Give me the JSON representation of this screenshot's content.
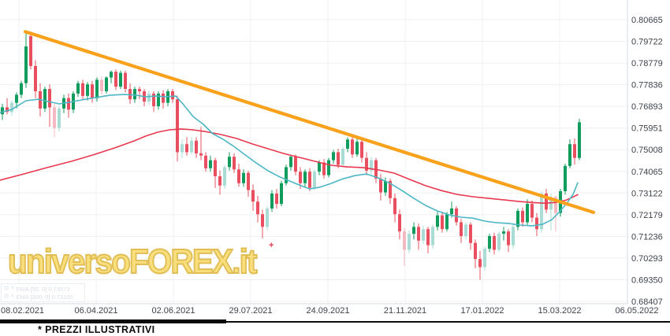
{
  "watermark": {
    "text": "universoFOREX.it",
    "plus_marker": "+"
  },
  "footer": {
    "note": "* PREZZI ILLUSTRATIVI"
  },
  "legend": {
    "rows": [
      {
        "panel_icon": "▤",
        "close_icon": "✕",
        "label": "EMA [50, 0]",
        "value": "0.73573"
      },
      {
        "panel_icon": "▤",
        "close_icon": "✕",
        "label": "EMA [200, 0]",
        "value": "0.73100"
      }
    ]
  },
  "colors": {
    "up": "#109c5c",
    "up_light": "#aadcd5",
    "down": "#e9505f",
    "down_light": "#f4b9c0",
    "ema50": "#4db6c5",
    "ema200": "#e8384e",
    "trendline": "#f9a11b",
    "grid": "#eef1f4",
    "axis_line": "#d6dbe0",
    "axis_text": "#3e434c",
    "background": "#ffffff"
  },
  "chart_data": {
    "type": "candlestick",
    "title": "",
    "xlabel": "",
    "ylabel": "",
    "grid": true,
    "y_axis": {
      "labels": [
        "0.80665",
        "0.79722",
        "0.78779",
        "0.77836",
        "0.76893",
        "0.75951",
        "0.75008",
        "0.74065",
        "0.73122",
        "0.72179",
        "0.71236",
        "0.70293",
        "0.69350",
        "0.68407"
      ],
      "values": [
        0.80665,
        0.79722,
        0.78779,
        0.77836,
        0.76893,
        0.75951,
        0.75008,
        0.74065,
        0.73122,
        0.72179,
        0.71236,
        0.70293,
        0.6935,
        0.68407
      ]
    },
    "x_axis": {
      "labels": [
        "08.02.2021",
        "06.04.2021",
        "02.06.2021",
        "29.07.2021",
        "24.09.2021",
        "21.11.2021",
        "17.01.2022",
        "15.03.2022",
        "06.05.2022"
      ],
      "positions": [
        24,
        122,
        220,
        318,
        416,
        514,
        612,
        710,
        808
      ]
    },
    "price_range": {
      "top": 0.81521,
      "bottom": 0.68305
    },
    "candles": [
      [
        0.7655,
        0.77,
        0.763,
        0.7685
      ],
      [
        0.7685,
        0.7725,
        0.7655,
        0.7665
      ],
      [
        0.7665,
        0.7715,
        0.765,
        0.7705,
        1
      ],
      [
        0.7705,
        0.775,
        0.768,
        0.774
      ],
      [
        0.774,
        0.78,
        0.7725,
        0.779
      ],
      [
        0.779,
        0.8015,
        0.777,
        0.795
      ],
      [
        0.7995,
        0.8015,
        0.785,
        0.7865
      ],
      [
        0.7865,
        0.789,
        0.7725,
        0.7755
      ],
      [
        0.7755,
        0.779,
        0.7645,
        0.768
      ],
      [
        0.768,
        0.7775,
        0.7665,
        0.7765
      ],
      [
        0.7765,
        0.7785,
        0.76,
        0.7685
      ],
      [
        0.7685,
        0.77,
        0.7555,
        0.7595,
        1
      ],
      [
        0.7595,
        0.769,
        0.758,
        0.768,
        1
      ],
      [
        0.768,
        0.774,
        0.766,
        0.7725
      ],
      [
        0.7725,
        0.7745,
        0.764,
        0.7675
      ],
      [
        0.7675,
        0.7755,
        0.766,
        0.7745
      ],
      [
        0.7745,
        0.78,
        0.773,
        0.779
      ],
      [
        0.779,
        0.7805,
        0.772,
        0.7735
      ],
      [
        0.7735,
        0.7795,
        0.7715,
        0.7785
      ],
      [
        0.7785,
        0.78,
        0.7705,
        0.7725
      ],
      [
        0.7725,
        0.7815,
        0.771,
        0.7805
      ],
      [
        0.7805,
        0.782,
        0.774,
        0.7755,
        1
      ],
      [
        0.7755,
        0.782,
        0.7745,
        0.7815
      ],
      [
        0.7815,
        0.7845,
        0.779,
        0.784
      ],
      [
        0.784,
        0.785,
        0.776,
        0.7775
      ],
      [
        0.7775,
        0.7845,
        0.7765,
        0.7835
      ],
      [
        0.7835,
        0.7845,
        0.775,
        0.7765
      ],
      [
        0.7765,
        0.779,
        0.77,
        0.772
      ],
      [
        0.772,
        0.7775,
        0.7705,
        0.7765
      ],
      [
        0.7765,
        0.7775,
        0.772,
        0.7755
      ],
      [
        0.7755,
        0.7765,
        0.769,
        0.771
      ],
      [
        0.771,
        0.7755,
        0.7695,
        0.7745,
        1
      ],
      [
        0.7745,
        0.7755,
        0.7665,
        0.769
      ],
      [
        0.769,
        0.7755,
        0.7675,
        0.7745
      ],
      [
        0.7745,
        0.776,
        0.768,
        0.7705
      ],
      [
        0.7705,
        0.7765,
        0.769,
        0.7755
      ],
      [
        0.7755,
        0.7765,
        0.7705,
        0.772
      ],
      [
        0.772,
        0.7735,
        0.745,
        0.749
      ],
      [
        0.749,
        0.7545,
        0.7465,
        0.7525,
        1
      ],
      [
        0.7525,
        0.7555,
        0.7475,
        0.749
      ],
      [
        0.749,
        0.7555,
        0.748,
        0.754,
        1
      ],
      [
        0.754,
        0.7555,
        0.7465,
        0.7485
      ],
      [
        0.7485,
        0.76,
        0.7455,
        0.7475
      ],
      [
        0.7475,
        0.749,
        0.7405,
        0.742
      ],
      [
        0.742,
        0.7475,
        0.7405,
        0.7455
      ],
      [
        0.7455,
        0.7465,
        0.7335,
        0.7385
      ],
      [
        0.7385,
        0.741,
        0.7305,
        0.7345
      ],
      [
        0.7345,
        0.7435,
        0.733,
        0.7425,
        1
      ],
      [
        0.7425,
        0.749,
        0.741,
        0.747
      ],
      [
        0.747,
        0.7485,
        0.74,
        0.7415
      ],
      [
        0.7415,
        0.744,
        0.734,
        0.7355
      ],
      [
        0.7355,
        0.7415,
        0.734,
        0.74
      ],
      [
        0.74,
        0.741,
        0.7295,
        0.7325
      ],
      [
        0.7325,
        0.735,
        0.7235,
        0.7275
      ],
      [
        0.7275,
        0.73,
        0.7185,
        0.722
      ],
      [
        0.722,
        0.724,
        0.7115,
        0.7165
      ],
      [
        0.7165,
        0.7255,
        0.715,
        0.7245,
        1
      ],
      [
        0.7245,
        0.7325,
        0.723,
        0.731
      ],
      [
        0.731,
        0.733,
        0.7245,
        0.7265
      ],
      [
        0.7265,
        0.7365,
        0.7255,
        0.7355
      ],
      [
        0.7355,
        0.7435,
        0.7345,
        0.7425
      ],
      [
        0.7425,
        0.7478,
        0.741,
        0.747
      ],
      [
        0.747,
        0.748,
        0.739,
        0.7405
      ],
      [
        0.7405,
        0.7425,
        0.733,
        0.7355
      ],
      [
        0.7355,
        0.7415,
        0.734,
        0.7405
      ],
      [
        0.7405,
        0.742,
        0.732,
        0.7335
      ],
      [
        0.7335,
        0.7415,
        0.7325,
        0.7405,
        1
      ],
      [
        0.7405,
        0.7455,
        0.739,
        0.7445
      ],
      [
        0.7445,
        0.746,
        0.7375,
        0.739
      ],
      [
        0.739,
        0.7465,
        0.738,
        0.7455
      ],
      [
        0.7455,
        0.75,
        0.744,
        0.749
      ],
      [
        0.749,
        0.7505,
        0.742,
        0.7435
      ],
      [
        0.7435,
        0.7515,
        0.7425,
        0.7505,
        1
      ],
      [
        0.7505,
        0.7555,
        0.749,
        0.7545
      ],
      [
        0.7545,
        0.756,
        0.7465,
        0.748
      ],
      [
        0.748,
        0.7555,
        0.747,
        0.7535
      ],
      [
        0.7535,
        0.7545,
        0.7445,
        0.7465
      ],
      [
        0.7465,
        0.749,
        0.739,
        0.741
      ],
      [
        0.741,
        0.747,
        0.7395,
        0.7455,
        1
      ],
      [
        0.7455,
        0.7465,
        0.7355,
        0.7375
      ],
      [
        0.7375,
        0.7395,
        0.728,
        0.7315
      ],
      [
        0.7315,
        0.738,
        0.73,
        0.7365
      ],
      [
        0.7365,
        0.7375,
        0.7265,
        0.729
      ],
      [
        0.729,
        0.731,
        0.7185,
        0.722
      ],
      [
        0.722,
        0.724,
        0.711,
        0.7145
      ],
      [
        0.7145,
        0.716,
        0.6995,
        0.7065,
        1
      ],
      [
        0.7065,
        0.715,
        0.705,
        0.7135,
        1
      ],
      [
        0.7135,
        0.7185,
        0.711,
        0.7165
      ],
      [
        0.7165,
        0.718,
        0.7065,
        0.7105
      ],
      [
        0.7105,
        0.717,
        0.709,
        0.7155,
        1
      ],
      [
        0.7155,
        0.7165,
        0.705,
        0.7085
      ],
      [
        0.7085,
        0.7175,
        0.707,
        0.7165,
        1
      ],
      [
        0.7165,
        0.723,
        0.715,
        0.7215
      ],
      [
        0.7215,
        0.723,
        0.714,
        0.7155
      ],
      [
        0.7155,
        0.723,
        0.7145,
        0.722
      ],
      [
        0.722,
        0.7275,
        0.7205,
        0.7245
      ],
      [
        0.7245,
        0.7255,
        0.717,
        0.7185
      ],
      [
        0.7185,
        0.72,
        0.7095,
        0.7125
      ],
      [
        0.7125,
        0.7185,
        0.711,
        0.7175,
        1
      ],
      [
        0.7175,
        0.7185,
        0.7065,
        0.7095
      ],
      [
        0.7095,
        0.711,
        0.6985,
        0.7025
      ],
      [
        0.7025,
        0.706,
        0.6935,
        0.699
      ],
      [
        0.699,
        0.708,
        0.6975,
        0.707,
        1
      ],
      [
        0.707,
        0.7135,
        0.7055,
        0.7125
      ],
      [
        0.7125,
        0.714,
        0.7045,
        0.7065
      ],
      [
        0.7065,
        0.7145,
        0.7055,
        0.7135,
        1
      ],
      [
        0.7135,
        0.7165,
        0.7105,
        0.7145
      ],
      [
        0.7145,
        0.7155,
        0.7055,
        0.7085
      ],
      [
        0.7085,
        0.7175,
        0.707,
        0.7165,
        1
      ],
      [
        0.7165,
        0.7245,
        0.715,
        0.7235
      ],
      [
        0.7235,
        0.725,
        0.7165,
        0.7185
      ],
      [
        0.7185,
        0.7285,
        0.717,
        0.7265
      ],
      [
        0.7265,
        0.728,
        0.7185,
        0.7205
      ],
      [
        0.7205,
        0.7225,
        0.7125,
        0.7155
      ],
      [
        0.7155,
        0.732,
        0.714,
        0.731,
        1
      ],
      [
        0.731,
        0.733,
        0.7225,
        0.724
      ],
      [
        0.724,
        0.731,
        0.715,
        0.7295,
        1
      ],
      [
        0.7295,
        0.73,
        0.7145,
        0.7225,
        1
      ],
      [
        0.7225,
        0.733,
        0.721,
        0.732
      ],
      [
        0.732,
        0.744,
        0.7305,
        0.743
      ],
      [
        0.743,
        0.7545,
        0.742,
        0.7525
      ],
      [
        0.7525,
        0.755,
        0.7435,
        0.7465
      ],
      [
        0.7465,
        0.7635,
        0.7455,
        0.762
      ]
    ],
    "ema50": {
      "name": "EMA [50, 0]",
      "value": 0.73573,
      "points": [
        [
          0,
          0.7662
        ],
        [
          15,
          0.7676
        ],
        [
          33,
          0.7714
        ],
        [
          48,
          0.772
        ],
        [
          62,
          0.771
        ],
        [
          75,
          0.77
        ],
        [
          88,
          0.7707
        ],
        [
          103,
          0.7717
        ],
        [
          120,
          0.7727
        ],
        [
          140,
          0.7738
        ],
        [
          158,
          0.7741
        ],
        [
          172,
          0.7738
        ],
        [
          185,
          0.7731
        ],
        [
          198,
          0.7734
        ],
        [
          210,
          0.7731
        ],
        [
          223,
          0.7734
        ],
        [
          232,
          0.77
        ],
        [
          245,
          0.7645
        ],
        [
          258,
          0.7611
        ],
        [
          270,
          0.757
        ],
        [
          283,
          0.7546
        ],
        [
          295,
          0.7519
        ],
        [
          310,
          0.7481
        ],
        [
          325,
          0.7443
        ],
        [
          340,
          0.7409
        ],
        [
          355,
          0.7382
        ],
        [
          370,
          0.7361
        ],
        [
          382,
          0.7344
        ],
        [
          393,
          0.733
        ],
        [
          405,
          0.7337
        ],
        [
          420,
          0.7354
        ],
        [
          435,
          0.7374
        ],
        [
          450,
          0.7388
        ],
        [
          465,
          0.7395
        ],
        [
          480,
          0.7378
        ],
        [
          495,
          0.7354
        ],
        [
          510,
          0.7323
        ],
        [
          525,
          0.7289
        ],
        [
          540,
          0.7258
        ],
        [
          555,
          0.7234
        ],
        [
          570,
          0.7217
        ],
        [
          585,
          0.7207
        ],
        [
          600,
          0.7203
        ],
        [
          615,
          0.719
        ],
        [
          630,
          0.7183
        ],
        [
          645,
          0.718
        ],
        [
          660,
          0.7173
        ],
        [
          675,
          0.7169
        ],
        [
          688,
          0.7176
        ],
        [
          700,
          0.7196
        ],
        [
          710,
          0.7231
        ],
        [
          720,
          0.7272
        ],
        [
          727,
          0.7306
        ],
        [
          733,
          0.7357
        ]
      ]
    },
    "ema200": {
      "name": "EMA [200, 0]",
      "value": 0.731,
      "points": [
        [
          0,
          0.7368
        ],
        [
          30,
          0.7395
        ],
        [
          60,
          0.7423
        ],
        [
          90,
          0.745
        ],
        [
          118,
          0.7478
        ],
        [
          145,
          0.7508
        ],
        [
          170,
          0.7539
        ],
        [
          185,
          0.756
        ],
        [
          200,
          0.7577
        ],
        [
          215,
          0.7587
        ],
        [
          230,
          0.7591
        ],
        [
          245,
          0.7587
        ],
        [
          260,
          0.758
        ],
        [
          280,
          0.7567
        ],
        [
          300,
          0.755
        ],
        [
          320,
          0.7526
        ],
        [
          340,
          0.7505
        ],
        [
          360,
          0.7484
        ],
        [
          380,
          0.7467
        ],
        [
          400,
          0.745
        ],
        [
          420,
          0.7433
        ],
        [
          440,
          0.7426
        ],
        [
          460,
          0.7423
        ],
        [
          480,
          0.7413
        ],
        [
          500,
          0.7399
        ],
        [
          520,
          0.7371
        ],
        [
          540,
          0.7344
        ],
        [
          560,
          0.7323
        ],
        [
          580,
          0.7306
        ],
        [
          600,
          0.7296
        ],
        [
          620,
          0.7289
        ],
        [
          640,
          0.7282
        ],
        [
          660,
          0.7275
        ],
        [
          675,
          0.7271
        ],
        [
          690,
          0.7268
        ],
        [
          705,
          0.7271
        ],
        [
          718,
          0.7281
        ],
        [
          727,
          0.7295
        ],
        [
          733,
          0.7305
        ]
      ]
    },
    "trendline": {
      "from": [
        32,
        0.8014
      ],
      "to": [
        753,
        0.7228
      ]
    }
  }
}
